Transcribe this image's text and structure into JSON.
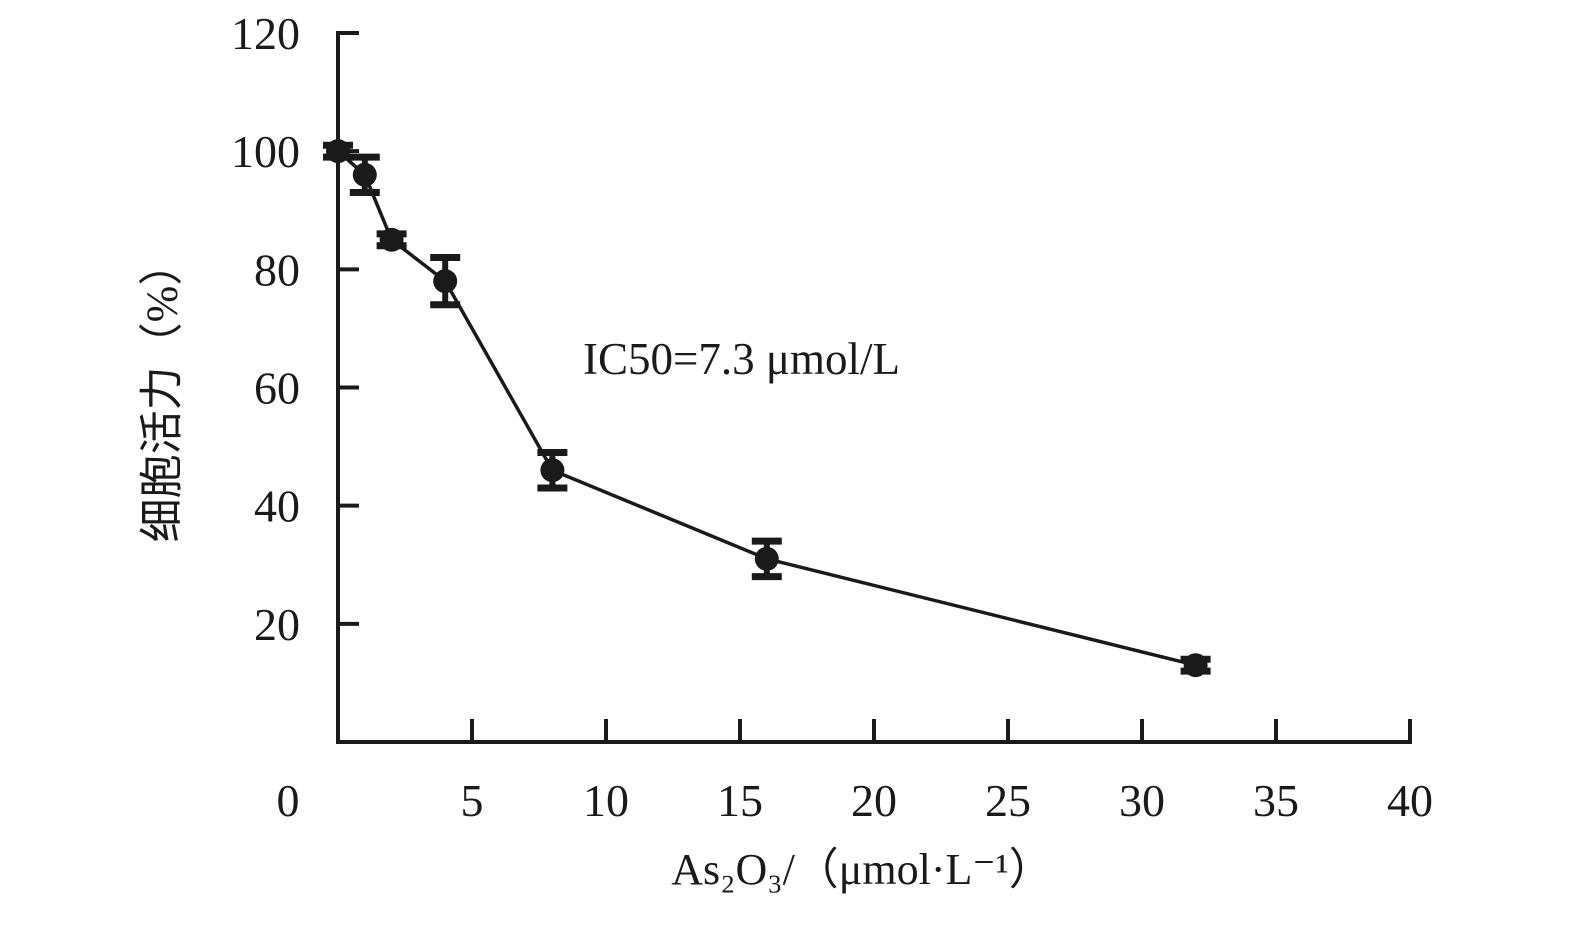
{
  "chart_data": {
    "type": "line",
    "x": [
      0,
      1,
      2,
      4,
      8,
      16,
      32
    ],
    "series": [
      {
        "values": [
          100,
          96,
          85,
          78,
          46,
          31,
          13
        ],
        "error": [
          1,
          3,
          1,
          4,
          3,
          3,
          1
        ],
        "color": "#1a1a1a"
      }
    ],
    "xlabel": "As₂O₃/（μmol·L⁻¹）",
    "ylabel": "细胞活力（%）",
    "xlim": [
      0,
      40
    ],
    "ylim": [
      0,
      120
    ],
    "xticks": [
      0,
      5,
      10,
      15,
      20,
      25,
      30,
      35,
      40
    ],
    "yticks": [
      20,
      40,
      60,
      80,
      100,
      120
    ],
    "annotations": [
      "IC50=7.3 μmol/L"
    ],
    "error_bars": true,
    "grid": false,
    "legend": "none"
  }
}
